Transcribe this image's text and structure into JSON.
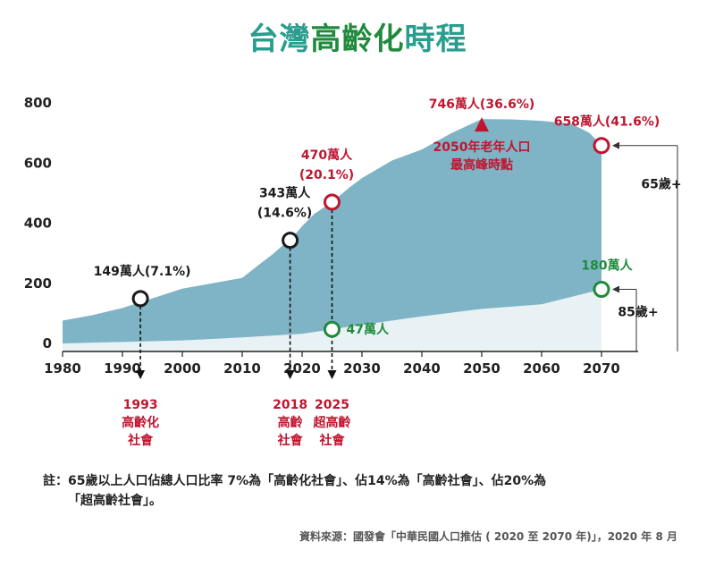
{
  "title": {
    "part1": "台灣",
    "part2": "高齡化",
    "part3": "時程"
  },
  "chart_data": {
    "type": "area",
    "x_ticks": [
      1980,
      1990,
      2000,
      2010,
      2020,
      2030,
      2040,
      2050,
      2060,
      2070
    ],
    "y_ticks": [
      0,
      200,
      400,
      600,
      800
    ],
    "xlim": [
      1980,
      2070
    ],
    "ylim": [
      0,
      800
    ],
    "series": [
      {
        "x": [
          1980,
          1985,
          1990,
          1995,
          2000,
          2005,
          2010,
          2013,
          2015,
          2017,
          2018,
          2020,
          2022,
          2025,
          2028,
          2030,
          2035,
          2040,
          2045,
          2050,
          2055,
          2060,
          2065,
          2068,
          2070
        ],
        "values": [
          76,
          94,
          118,
          150,
          182,
          200,
          218,
          265,
          295,
          330,
          343,
          390,
          430,
          470,
          520,
          550,
          608,
          645,
          700,
          746,
          745,
          740,
          730,
          700,
          658
        ],
        "color": "#7fb4c6"
      },
      {
        "x": [
          1980,
          1990,
          2000,
          2010,
          2020,
          2025,
          2030,
          2040,
          2050,
          2060,
          2070
        ],
        "values": [
          0,
          5,
          10,
          20,
          32,
          47,
          62,
          90,
          115,
          130,
          180
        ],
        "color": "#e8f1f4"
      }
    ],
    "markers": [
      {
        "x": 1993,
        "y": 149,
        "label": "149萬人(7.1%)",
        "color": "#1a1a1a"
      },
      {
        "x": 2018,
        "y": 343,
        "label1": "343萬人",
        "label2": "(14.6%)",
        "color": "#1a1a1a"
      },
      {
        "x": 2025,
        "y": 470,
        "label1": "470萬人",
        "label2": "(20.1%)",
        "color": "#c0152f"
      },
      {
        "x": 2025,
        "y": 47,
        "label": "47萬人",
        "color": "#1f8a3c"
      },
      {
        "x": 2070,
        "y": 658,
        "label": "658萬人(41.6%)",
        "color": "#c0152f"
      },
      {
        "x": 2070,
        "y": 180,
        "label": "180萬人",
        "color": "#1f8a3c"
      }
    ],
    "peak": {
      "x": 2050,
      "y": 746,
      "label": "746萬人(36.6%)",
      "note1": "2050年老年人口",
      "note2": "最高峰時點"
    },
    "milestones": [
      {
        "x": 1993,
        "year": "1993",
        "line1": "高齡化",
        "line2": "社會"
      },
      {
        "x": 2018,
        "year": "2018",
        "line1": "高齡",
        "line2": "社會"
      },
      {
        "x": 2025,
        "year": "2025",
        "line1": "超高齡",
        "line2": "社會"
      }
    ],
    "bracket_labels": {
      "age65": "65歲+",
      "age85": "85歲+"
    }
  },
  "note": {
    "line1": "註：65歲以上人口佔總人口比率 7%為「高齡化社會」、佔14%為「高齡社會」、佔20%為",
    "line2": "「超高齡社會」。"
  },
  "source": "資料來源：國發會「中華民國人口推估 ( 2020 至 2070 年)」，2020 年 8 月",
  "colors": {
    "area65": "#7fb4c6",
    "area85": "#e8f1f4",
    "red": "#c0152f",
    "green": "#1f8a3c",
    "title_teal": "#2a9d8f",
    "title_green": "#1f8a3c"
  }
}
